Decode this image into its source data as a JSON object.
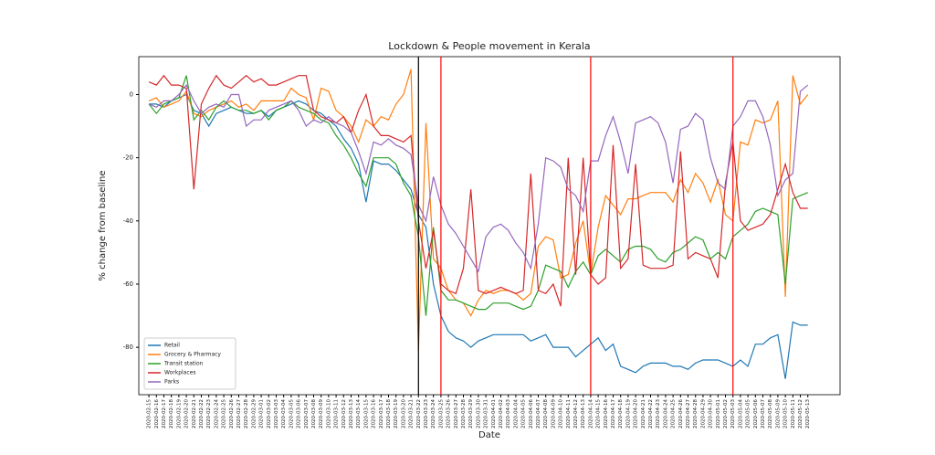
{
  "chart_data": {
    "type": "line",
    "title": "Lockdown & People movement in Kerala",
    "x_label": "Date",
    "y_label": "% change from baseline",
    "categories": [
      "2020-02-15",
      "2020-02-16",
      "2020-02-17",
      "2020-02-18",
      "2020-02-19",
      "2020-02-20",
      "2020-02-21",
      "2020-02-22",
      "2020-02-23",
      "2020-02-24",
      "2020-02-25",
      "2020-02-26",
      "2020-02-27",
      "2020-02-28",
      "2020-02-29",
      "2020-03-01",
      "2020-03-02",
      "2020-03-03",
      "2020-03-04",
      "2020-03-05",
      "2020-03-06",
      "2020-03-07",
      "2020-03-08",
      "2020-03-09",
      "2020-03-10",
      "2020-03-11",
      "2020-03-12",
      "2020-03-13",
      "2020-03-14",
      "2020-03-15",
      "2020-03-16",
      "2020-03-17",
      "2020-03-18",
      "2020-03-19",
      "2020-03-20",
      "2020-03-21",
      "2020-03-22",
      "2020-03-23",
      "2020-03-24",
      "2020-03-25",
      "2020-03-26",
      "2020-03-27",
      "2020-03-28",
      "2020-03-29",
      "2020-03-30",
      "2020-03-31",
      "2020-04-01",
      "2020-04-02",
      "2020-04-03",
      "2020-04-04",
      "2020-04-05",
      "2020-04-06",
      "2020-04-07",
      "2020-04-08",
      "2020-04-09",
      "2020-04-10",
      "2020-04-11",
      "2020-04-12",
      "2020-04-13",
      "2020-04-14",
      "2020-04-15",
      "2020-04-16",
      "2020-04-17",
      "2020-04-18",
      "2020-04-19",
      "2020-04-20",
      "2020-04-21",
      "2020-04-22",
      "2020-04-23",
      "2020-04-24",
      "2020-04-25",
      "2020-04-26",
      "2020-04-27",
      "2020-04-28",
      "2020-04-29",
      "2020-04-30",
      "2020-05-01",
      "2020-05-02",
      "2020-05-03",
      "2020-05-04",
      "2020-05-05",
      "2020-05-06",
      "2020-05-07",
      "2020-05-08",
      "2020-05-09",
      "2020-05-10",
      "2020-05-11",
      "2020-05-12",
      "2020-05-13"
    ],
    "series": [
      {
        "name": "Retail",
        "color": "#1f77b4",
        "values": [
          -3,
          -3,
          -4,
          -2,
          -1,
          0,
          -5,
          -6,
          -10,
          -6,
          -5,
          -4,
          -5,
          -6,
          -6,
          -5,
          -7,
          -5,
          -4,
          -3,
          -2,
          -3,
          -5,
          -6,
          -8,
          -10,
          -14,
          -17,
          -22,
          -34,
          -21,
          -22,
          -22,
          -24,
          -27,
          -30,
          -38,
          -42,
          -60,
          -70,
          -75,
          -77,
          -78,
          -80,
          -78,
          -77,
          -76,
          -76,
          -76,
          -76,
          -76,
          -78,
          -77,
          -76,
          -80,
          -80,
          -80,
          -83,
          -81,
          -79,
          -77,
          -81,
          -79,
          -86,
          -87,
          -88,
          -86,
          -85,
          -85,
          -85,
          -86,
          -86,
          -87,
          -85,
          -84,
          -84,
          -84,
          -85,
          -86,
          -84,
          -86,
          -79,
          -79,
          -77,
          -76,
          -90,
          -72,
          -73,
          -73
        ]
      },
      {
        "name": "Grocery & Pharmacy",
        "color": "#ff7f0e",
        "values": [
          -2,
          -1,
          -4,
          -3,
          -2,
          1,
          -6,
          -7,
          -5,
          -4,
          -3,
          -2,
          -4,
          -3,
          -5,
          -2,
          -2,
          -2,
          -2,
          2,
          0,
          -1,
          -8,
          2,
          1,
          -5,
          -7,
          -10,
          -15,
          -8,
          -10,
          -7,
          -8,
          -3,
          0,
          8,
          -81,
          -9,
          -52,
          -55,
          -62,
          -65,
          -66,
          -70,
          -65,
          -62,
          -63,
          -62,
          -62,
          -63,
          -65,
          -63,
          -48,
          -45,
          -46,
          -58,
          -57,
          -47,
          -40,
          -57,
          -42,
          -32,
          -35,
          -38,
          -33,
          -33,
          -32,
          -31,
          -31,
          -31,
          -34,
          -27,
          -31,
          -25,
          -28,
          -34,
          -27,
          -38,
          -40,
          -15,
          -16,
          -8,
          -9,
          -8,
          -2,
          -64,
          6,
          -3,
          0
        ]
      },
      {
        "name": "Transit station",
        "color": "#2ca02c",
        "values": [
          -3,
          -6,
          -3,
          -2,
          -1,
          6,
          -8,
          -5,
          -8,
          -4,
          -2,
          -4,
          -5,
          -5,
          -6,
          -5,
          -8,
          -5,
          -4,
          -2,
          -4,
          -5,
          -6,
          -8,
          -9,
          -13,
          -16,
          -20,
          -25,
          -29,
          -20,
          -20,
          -20,
          -22,
          -28,
          -32,
          -45,
          -70,
          -42,
          -62,
          -65,
          -65,
          -66,
          -67,
          -68,
          -68,
          -66,
          -66,
          -66,
          -67,
          -68,
          -67,
          -62,
          -54,
          -55,
          -56,
          -61,
          -56,
          -53,
          -57,
          -51,
          -49,
          -51,
          -53,
          -49,
          -48,
          -48,
          -49,
          -52,
          -53,
          -50,
          -49,
          -47,
          -45,
          -46,
          -52,
          -50,
          -52,
          -45,
          -43,
          -41,
          -37,
          -36,
          -37,
          -38,
          -60,
          -33,
          -32,
          -31
        ]
      },
      {
        "name": "Workplaces",
        "color": "#d62728",
        "values": [
          4,
          3,
          6,
          3,
          3,
          2,
          -30,
          -3,
          2,
          6,
          3,
          2,
          4,
          6,
          4,
          5,
          3,
          3,
          4,
          5,
          6,
          6,
          -5,
          -7,
          -8,
          -9,
          -7,
          -12,
          -5,
          0,
          -10,
          -13,
          -13,
          -14,
          -15,
          -13,
          -40,
          -55,
          -43,
          -60,
          -62,
          -63,
          -55,
          -30,
          -62,
          -63,
          -62,
          -61,
          -62,
          -63,
          -62,
          -25,
          -62,
          -63,
          -60,
          -67,
          -20,
          -57,
          -20,
          -57,
          -60,
          -58,
          -16,
          -55,
          -52,
          -22,
          -54,
          -55,
          -55,
          -55,
          -54,
          -18,
          -52,
          -50,
          -51,
          -52,
          -58,
          -28,
          -15,
          -40,
          -43,
          -42,
          -41,
          -38,
          -30,
          -22,
          -31,
          -36,
          -36
        ]
      },
      {
        "name": "Parks",
        "color": "#9467bd",
        "values": [
          -3,
          -4,
          -2,
          -2,
          0,
          3,
          -2,
          -6,
          -4,
          -3,
          -4,
          0,
          0,
          -10,
          -8,
          -8,
          -5,
          -4,
          -3,
          -2,
          -5,
          -10,
          -8,
          -9,
          -7,
          -9,
          -10,
          -12,
          -18,
          -25,
          -15,
          -16,
          -14,
          -16,
          -17,
          -19,
          -35,
          -40,
          -26,
          -35,
          -41,
          -44,
          -48,
          -52,
          -56,
          -45,
          -42,
          -41,
          -43,
          -47,
          -50,
          -55,
          -41,
          -20,
          -21,
          -23,
          -30,
          -32,
          -37,
          -21,
          -21,
          -13,
          -7,
          -15,
          -25,
          -9,
          -8,
          -7,
          -9,
          -15,
          -28,
          -11,
          -10,
          -6,
          -8,
          -20,
          -28,
          -30,
          -10,
          -7,
          -2,
          -2,
          -7,
          -16,
          -32,
          -27,
          -25,
          1,
          3
        ]
      }
    ],
    "ylim": [
      -95,
      12
    ],
    "yticks": [
      -80,
      -60,
      -40,
      -20,
      0
    ],
    "grid": false,
    "legend": "lower left",
    "vlines": [
      {
        "x": "2020-03-22",
        "color": "#000000"
      },
      {
        "x": "2020-03-25",
        "color": "#ff0000"
      },
      {
        "x": "2020-04-14",
        "color": "#ff0000"
      },
      {
        "x": "2020-05-03",
        "color": "#ff0000"
      }
    ]
  }
}
